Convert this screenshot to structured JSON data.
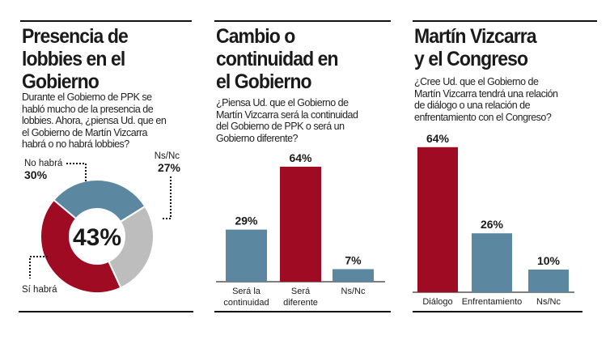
{
  "colors": {
    "red": "#9e0b22",
    "blue": "#5b87a0",
    "gray": "#bdbdbd",
    "text": "#1a1a1a"
  },
  "panels": [
    {
      "title": "Presencia de\nlobbies en el\nGobierno",
      "question": "Durante el Gobierno de PPK se\nhabló mucho de la presencia de\nlobbies. Ahora, ¿piensa Ud. que en\nel Gobierno de Martín Vizcarra\nhabrá o no habrá lobbies?"
    },
    {
      "title": "Cambio o\ncontinuidad en\nel Gobierno",
      "question": "¿Piensa Ud. que el Gobierno de\nMartín Vizcarra será la continuidad\ndel Gobierno de PPK o será un\nGobierno diferente?"
    },
    {
      "title": "Martín Vizcarra\ny el Congreso",
      "question": "¿Cree Ud. que el Gobierno de\nMartín Vizcarra tendrá una relación\nde diálogo o una relación de\nenfrentamiento con el Congreso?"
    }
  ],
  "chart_data": [
    {
      "type": "pie",
      "donut": true,
      "center_label": "43%",
      "slices": [
        {
          "label": "No habrá",
          "value": 30,
          "value_label": "30%",
          "color": "#5b87a0"
        },
        {
          "label": "Ns/Nc",
          "value": 27,
          "value_label": "27%",
          "color": "#bdbdbd"
        },
        {
          "label": "Sí habrá",
          "value": 43,
          "value_label": "",
          "color": "#9e0b22"
        }
      ]
    },
    {
      "type": "bar",
      "categories": [
        "Será la\ncontinuidad",
        "Será\ndiferente",
        "Ns/Nc"
      ],
      "values": [
        29,
        64,
        7
      ],
      "value_labels": [
        "29%",
        "64%",
        "7%"
      ],
      "colors": [
        "#5b87a0",
        "#9e0b22",
        "#5b87a0"
      ]
    },
    {
      "type": "bar",
      "categories": [
        "Diálogo",
        "Enfrentamiento",
        "Ns/Nc"
      ],
      "values": [
        64,
        26,
        10
      ],
      "value_labels": [
        "64%",
        "26%",
        "10%"
      ],
      "colors": [
        "#9e0b22",
        "#5b87a0",
        "#5b87a0"
      ]
    }
  ]
}
